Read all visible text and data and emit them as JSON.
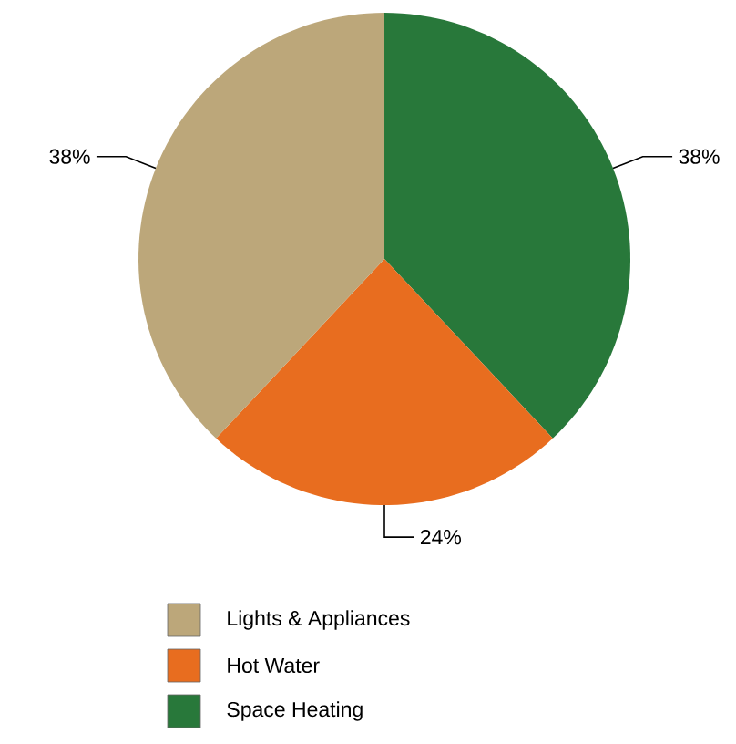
{
  "chart_data": {
    "type": "pie",
    "categories": [
      "Lights & Appliances",
      "Hot Water",
      "Space Heating"
    ],
    "values": [
      38,
      24,
      38
    ],
    "colors": [
      "#bca77a",
      "#e86d1f",
      "#28783a"
    ],
    "value_labels": [
      "38%",
      "24%",
      "38%"
    ],
    "legend": "bottom"
  }
}
